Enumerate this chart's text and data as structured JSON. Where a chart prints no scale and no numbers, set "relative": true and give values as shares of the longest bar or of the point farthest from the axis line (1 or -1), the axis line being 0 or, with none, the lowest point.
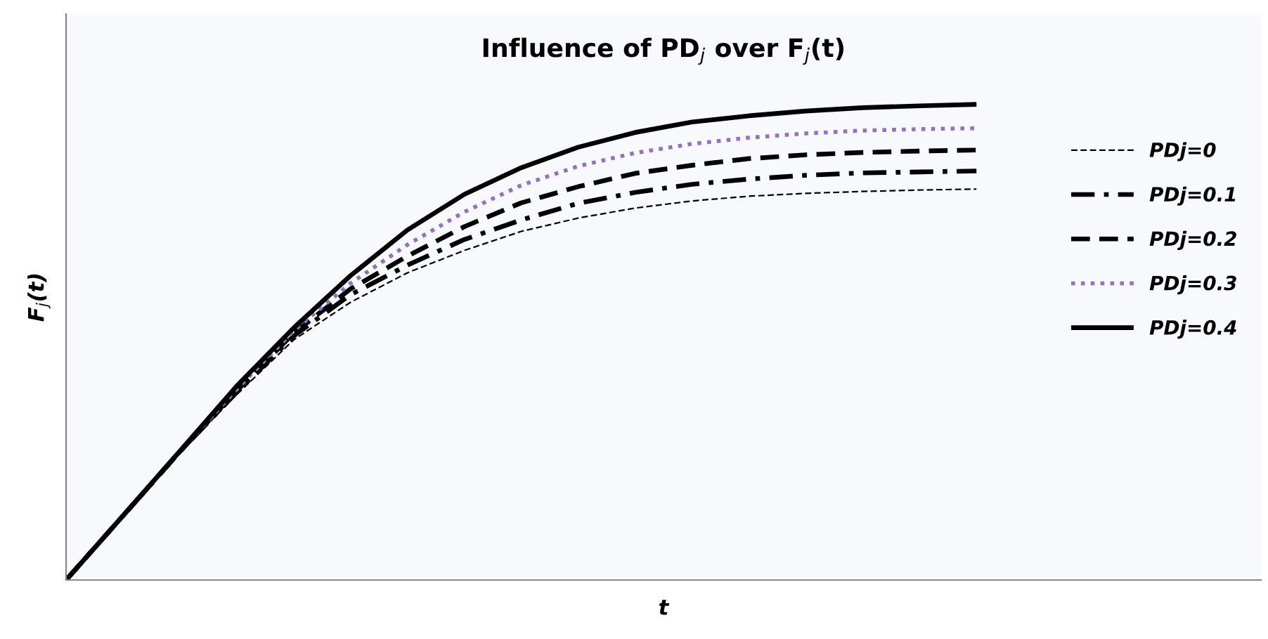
{
  "chart_data": {
    "type": "line",
    "title": "Influence of PD$_{j}$ over F$_{j}$(t)",
    "xlabel": "t",
    "ylabel": "F$_{j}$(t)",
    "categories": [
      null,
      null,
      null,
      null,
      null,
      null,
      null,
      null,
      null,
      null,
      null,
      null,
      null,
      null,
      null,
      null,
      null,
      null,
      null,
      null,
      null,
      null
    ],
    "relative": true,
    "grid": false,
    "legend": "right",
    "marker": "none",
    "series": [
      {
        "name": "PDj=0",
        "color": "#000000",
        "line_style": "dashed",
        "values": [
          0,
          0.134,
          0.268,
          0.39,
          0.505,
          0.584,
          0.646,
          0.693,
          0.733,
          0.761,
          0.782,
          0.797,
          0.807,
          0.813,
          0.817,
          0.82,
          0.822,
          null,
          null,
          null,
          null,
          null
        ]
      },
      {
        "name": "PDj=0.1",
        "color": "#000000",
        "line_style": "dashdot",
        "values": [
          0,
          0.135,
          0.27,
          0.395,
          0.513,
          0.6,
          0.662,
          0.716,
          0.757,
          0.792,
          0.815,
          0.832,
          0.843,
          0.851,
          0.856,
          0.858,
          0.86,
          null,
          null,
          null,
          null,
          null
        ]
      },
      {
        "name": "PDj=0.2",
        "color": "#000000",
        "line_style": "dashed",
        "values": [
          0,
          0.135,
          0.27,
          0.398,
          0.519,
          0.612,
          0.681,
          0.743,
          0.793,
          0.827,
          0.855,
          0.872,
          0.886,
          0.894,
          0.899,
          0.902,
          0.904,
          null,
          null,
          null,
          null,
          null
        ]
      },
      {
        "name": "PDj=0.3",
        "color": "#9370c0",
        "line_style": "dotted",
        "values": [
          0,
          0.135,
          0.271,
          0.401,
          0.524,
          0.624,
          0.705,
          0.774,
          0.83,
          0.87,
          0.898,
          0.917,
          0.93,
          0.939,
          0.945,
          0.948,
          0.95,
          null,
          null,
          null,
          null,
          null
        ]
      },
      {
        "name": "PDj=0.4",
        "color": "#000000",
        "line_style": "solid",
        "values": [
          0,
          0.135,
          0.271,
          0.408,
          0.53,
          0.64,
          0.736,
          0.811,
          0.867,
          0.91,
          0.941,
          0.963,
          0.976,
          0.986,
          0.993,
          0.997,
          1,
          null,
          null,
          null,
          null,
          null
        ]
      }
    ]
  }
}
